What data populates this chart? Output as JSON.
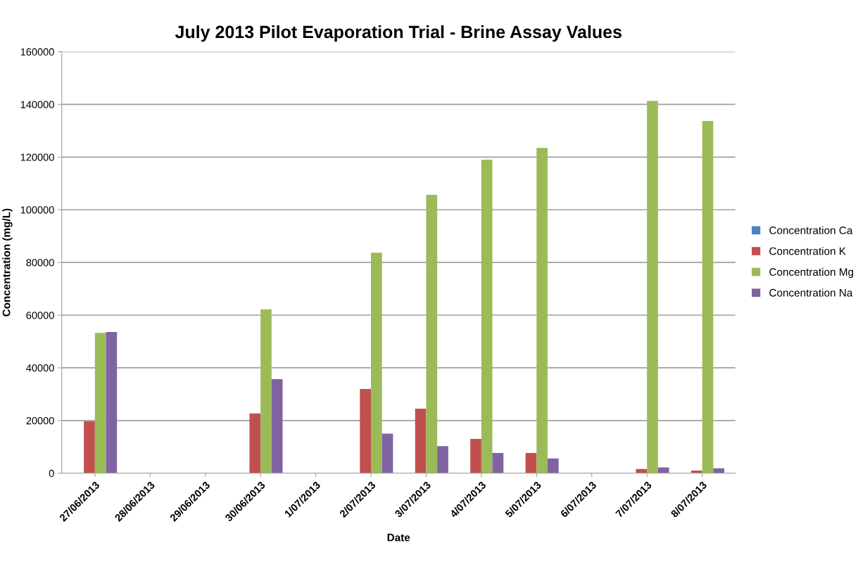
{
  "chart_data": {
    "type": "bar",
    "title": "July 2013 Pilot Evaporation Trial - Brine Assay Values",
    "xlabel": "Date",
    "ylabel": "Concentration (mg/L)",
    "categories": [
      "27/06/2013",
      "28/06/2013",
      "29/06/2013",
      "30/06/2013",
      "1/07/2013",
      "2/07/2013",
      "3/07/2013",
      "4/07/2013",
      "5/07/2013",
      "6/07/2013",
      "7/07/2013",
      "8/07/2013"
    ],
    "series": [
      {
        "name": "Concentration Ca",
        "color": "#4f81bd",
        "values": [
          null,
          null,
          null,
          null,
          null,
          null,
          null,
          null,
          null,
          null,
          null,
          null
        ]
      },
      {
        "name": "Concentration K",
        "color": "#c0504d",
        "values": [
          19700,
          null,
          null,
          22700,
          null,
          32000,
          24500,
          13000,
          7700,
          null,
          1600,
          1000
        ]
      },
      {
        "name": "Concentration Mg",
        "color": "#9bbb59",
        "values": [
          53300,
          null,
          null,
          62200,
          null,
          83700,
          105700,
          119000,
          123500,
          null,
          141300,
          133700
        ]
      },
      {
        "name": "Concentration Na",
        "color": "#8064a2",
        "values": [
          53600,
          null,
          null,
          35700,
          null,
          15000,
          10300,
          7700,
          5600,
          null,
          2200,
          1900
        ]
      }
    ],
    "ylim": [
      0,
      160000
    ],
    "yticks": [
      0,
      20000,
      40000,
      60000,
      80000,
      100000,
      120000,
      140000,
      160000
    ],
    "grid": "y",
    "legend": "right"
  }
}
